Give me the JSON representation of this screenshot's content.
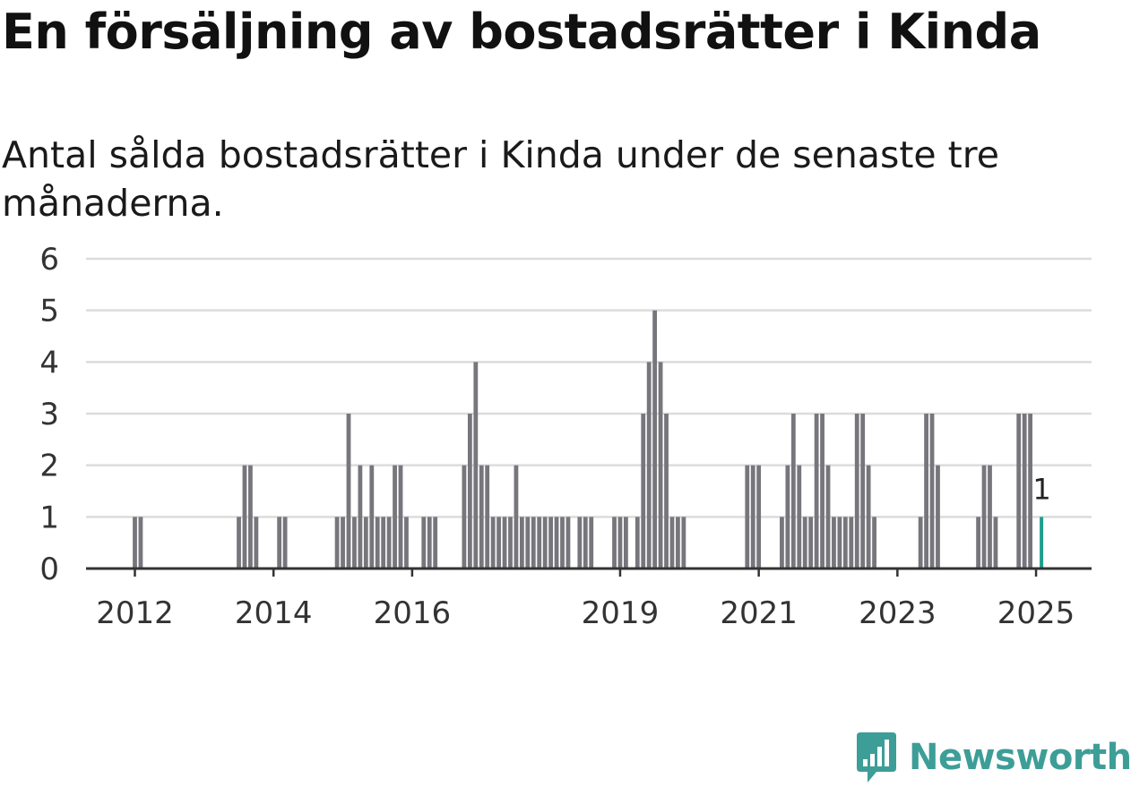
{
  "title": "En försäljning av bostadsrätter i Kinda",
  "subtitle": "Antal sålda bostadsrätter i Kinda under de senaste tre månaderna.",
  "logo": {
    "text": "Newsworthy",
    "icon": "newsworthy-logo-icon",
    "color": "#3d9e97"
  },
  "chart_data": {
    "type": "bar",
    "title": "En försäljning av bostadsrätter i Kinda",
    "subtitle": "Antal sålda bostadsrätter i Kinda under de senaste tre månaderna.",
    "xlabel": "",
    "ylabel": "",
    "ylim": [
      0,
      6
    ],
    "yticks": [
      "0",
      "1",
      "2",
      "3",
      "4",
      "5",
      "6"
    ],
    "grid": true,
    "legend": "none",
    "bar_color": "#77767c",
    "highlight_color": "#1f9e8f",
    "xticks": [
      {
        "label": "2012",
        "date": "2012-01"
      },
      {
        "label": "2014",
        "date": "2014-01"
      },
      {
        "label": "2016",
        "date": "2016-01"
      },
      {
        "label": "2019",
        "date": "2019-01"
      },
      {
        "label": "2021",
        "date": "2021-01"
      },
      {
        "label": "2023",
        "date": "2023-01"
      },
      {
        "label": "2025",
        "date": "2025-01"
      }
    ],
    "x": [
      "2012-01",
      "2012-02",
      "2013-07",
      "2013-08",
      "2013-09",
      "2013-10",
      "2014-02",
      "2014-03",
      "2014-12",
      "2015-01",
      "2015-02",
      "2015-03",
      "2015-04",
      "2015-05",
      "2015-06",
      "2015-07",
      "2015-08",
      "2015-09",
      "2015-10",
      "2015-11",
      "2015-12",
      "2016-03",
      "2016-04",
      "2016-05",
      "2016-10",
      "2016-11",
      "2016-12",
      "2017-01",
      "2017-02",
      "2017-03",
      "2017-04",
      "2017-05",
      "2017-06",
      "2017-07",
      "2017-08",
      "2017-09",
      "2017-10",
      "2017-11",
      "2017-12",
      "2018-01",
      "2018-02",
      "2018-03",
      "2018-04",
      "2018-06",
      "2018-07",
      "2018-08",
      "2018-12",
      "2019-01",
      "2019-02",
      "2019-04",
      "2019-05",
      "2019-06",
      "2019-07",
      "2019-08",
      "2019-09",
      "2019-10",
      "2019-11",
      "2019-12",
      "2020-11",
      "2020-12",
      "2021-01",
      "2021-05",
      "2021-06",
      "2021-07",
      "2021-08",
      "2021-09",
      "2021-10",
      "2021-11",
      "2021-12",
      "2022-01",
      "2022-02",
      "2022-03",
      "2022-04",
      "2022-05",
      "2022-06",
      "2022-07",
      "2022-08",
      "2022-09",
      "2023-05",
      "2023-06",
      "2023-07",
      "2023-08",
      "2024-03",
      "2024-04",
      "2024-05",
      "2024-06",
      "2024-10",
      "2024-11",
      "2024-12",
      "2025-02"
    ],
    "values": [
      1,
      1,
      1,
      2,
      2,
      1,
      1,
      1,
      1,
      1,
      3,
      1,
      2,
      1,
      2,
      1,
      1,
      1,
      2,
      2,
      1,
      1,
      1,
      1,
      2,
      3,
      4,
      2,
      2,
      1,
      1,
      1,
      1,
      2,
      1,
      1,
      1,
      1,
      1,
      1,
      1,
      1,
      1,
      1,
      1,
      1,
      1,
      1,
      1,
      1,
      3,
      4,
      5,
      4,
      3,
      1,
      1,
      1,
      2,
      2,
      2,
      1,
      2,
      3,
      2,
      1,
      1,
      3,
      3,
      2,
      1,
      1,
      1,
      1,
      3,
      3,
      2,
      1,
      1,
      3,
      3,
      2,
      1,
      2,
      2,
      1,
      3,
      3,
      3,
      1
    ],
    "highlight": {
      "x": "2025-02",
      "value": 1,
      "label": "1"
    }
  }
}
